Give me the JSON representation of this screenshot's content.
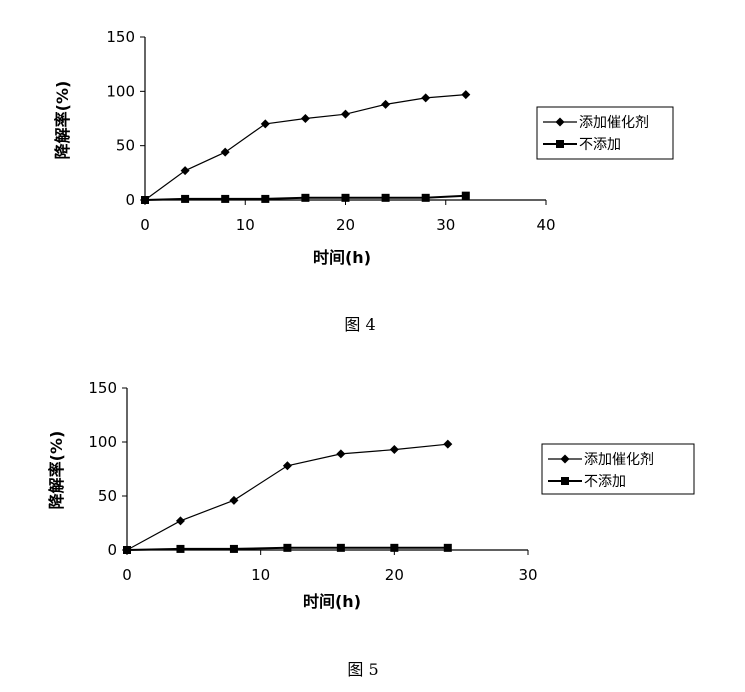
{
  "chart_data": [
    {
      "type": "line",
      "ylabel": "降解率(%)",
      "xlabel": "时间(h)",
      "xlim": [
        0,
        40
      ],
      "ylim": [
        0,
        150
      ],
      "xticks": [
        "0",
        "10",
        "20",
        "30",
        "40"
      ],
      "yticks": [
        "0",
        "50",
        "100",
        "150"
      ],
      "legend_position": "right",
      "caption": "图 4",
      "series": [
        {
          "name": "添加催化剂",
          "marker": "diamond",
          "x": [
            0,
            4,
            8,
            12,
            16,
            20,
            24,
            28,
            32
          ],
          "y": [
            0,
            27,
            44,
            70,
            75,
            79,
            88,
            94,
            97
          ]
        },
        {
          "name": "不添加",
          "marker": "square",
          "x": [
            0,
            4,
            8,
            12,
            16,
            20,
            24,
            28,
            32
          ],
          "y": [
            0,
            1,
            1,
            1,
            2,
            2,
            2,
            2,
            4
          ]
        }
      ]
    },
    {
      "type": "line",
      "ylabel": "降解率(%)",
      "xlabel": "时间(h)",
      "xlim": [
        0,
        30
      ],
      "ylim": [
        0,
        150
      ],
      "xticks": [
        "0",
        "10",
        "20",
        "30"
      ],
      "yticks": [
        "0",
        "50",
        "100",
        "150"
      ],
      "legend_position": "right",
      "caption": "图 5",
      "series": [
        {
          "name": "添加催化剂",
          "marker": "diamond",
          "x": [
            0,
            4,
            8,
            12,
            16,
            20,
            24
          ],
          "y": [
            0,
            27,
            46,
            78,
            89,
            93,
            98
          ]
        },
        {
          "name": "不添加",
          "marker": "square",
          "x": [
            0,
            4,
            8,
            12,
            16,
            20,
            24
          ],
          "y": [
            0,
            1,
            1,
            2,
            2,
            2,
            2
          ]
        }
      ]
    }
  ]
}
